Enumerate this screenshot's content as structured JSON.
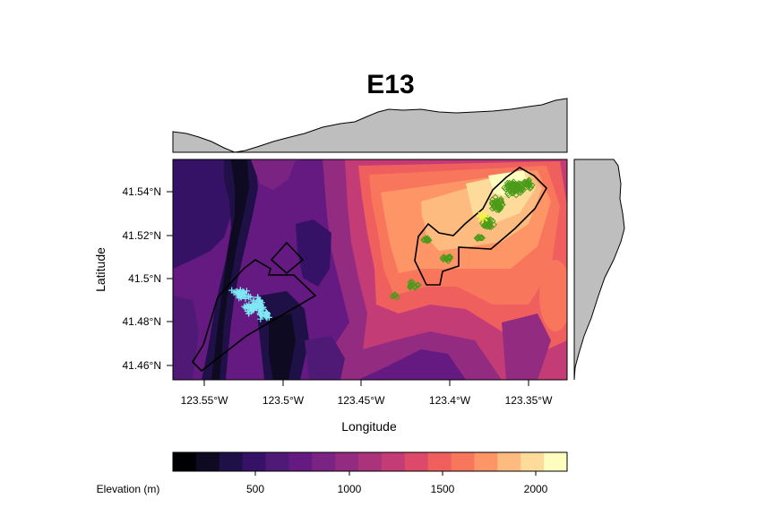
{
  "title": "E13",
  "xlabel": "Longitude",
  "ylabel": "Latitude",
  "x_ticks": [
    "123.55°W",
    "123.5°W",
    "123.45°W",
    "123.4°W",
    "123.35°W"
  ],
  "y_ticks": [
    "41.54°N",
    "41.52°N",
    "41.5°N",
    "41.48°N",
    "41.46°N"
  ],
  "legend": {
    "title": "Elevation (m)",
    "ticks": [
      "500",
      "1000",
      "1500",
      "2000"
    ],
    "palette": [
      "#000004",
      "#0d0a22",
      "#1f1147",
      "#361266",
      "#4f1a75",
      "#641a80",
      "#7b2382",
      "#932b80",
      "#ab337c",
      "#c43c75",
      "#dd4a69",
      "#ef5f5e",
      "#f8765c",
      "#fd9567",
      "#febb80",
      "#fedb9a",
      "#fcfdbf"
    ]
  },
  "colors": {
    "points_west": "#7fe7f5",
    "points_east": "#4c9b1a",
    "centroid_marker": "#f5f53a",
    "boundary": "#000000",
    "marginal_fill": "#bebebe"
  }
}
